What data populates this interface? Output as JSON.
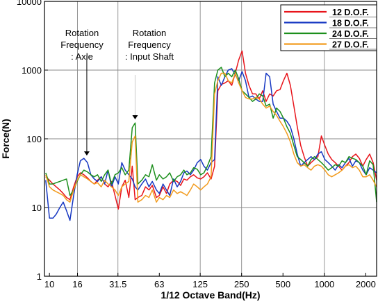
{
  "chart_data": {
    "type": "line",
    "title": "",
    "xlabel": "1/12 Octave Band(Hz)",
    "ylabel": "Force(N)",
    "x_scale": "log",
    "y_scale": "log",
    "xlim": [
      9.2,
      2400
    ],
    "ylim": [
      1,
      10000
    ],
    "x_ticks": [
      10,
      16,
      31.5,
      63,
      125,
      250,
      500,
      1000,
      2000
    ],
    "x_tick_labels": [
      "10",
      "16",
      "31.5",
      "63",
      "125",
      "250",
      "500",
      "1000",
      "2000"
    ],
    "y_ticks": [
      1,
      10,
      100,
      1000,
      10000
    ],
    "y_tick_labels": [
      "1",
      "10",
      "100",
      "1000",
      "10000"
    ],
    "x_grid_lines": [
      16,
      31.5,
      125,
      250,
      1000
    ],
    "y_grid_lines": [
      10,
      100,
      1000,
      10000
    ],
    "legend_position": "top-right",
    "series": [
      {
        "name": "12 D.O.F.",
        "color": "#e8141b",
        "x": [
          9.4,
          10,
          10.6,
          11.2,
          11.9,
          12.6,
          13.3,
          14.1,
          15,
          15.9,
          16.8,
          17.8,
          18.9,
          20,
          21.2,
          22.4,
          23.8,
          25.2,
          26.7,
          28.3,
          30,
          31.7,
          33.6,
          35.6,
          37.8,
          40,
          42,
          44,
          47,
          50,
          53,
          56,
          60,
          63,
          67,
          71,
          75,
          80,
          85,
          90,
          95,
          100,
          106,
          112,
          119,
          126,
          133,
          141,
          150,
          159,
          168,
          178,
          189,
          200,
          212,
          225,
          238,
          252,
          267,
          283,
          300,
          317,
          336,
          356,
          377,
          400,
          424,
          449,
          476,
          504,
          534,
          566,
          600,
          635,
          673,
          713,
          756,
          800,
          848,
          898,
          951,
          1008,
          1068,
          1131,
          1199,
          1270,
          1345,
          1425,
          1510,
          1600,
          1695,
          1796,
          1903,
          2016,
          2136,
          2263,
          2400
        ],
        "y": [
          28,
          25,
          22,
          20,
          18,
          16,
          14,
          13,
          20,
          28,
          32,
          30,
          27,
          24,
          22,
          25,
          28,
          22,
          20,
          24,
          15,
          9.5,
          20,
          25,
          14,
          40,
          13,
          14,
          15,
          20,
          18,
          21,
          14,
          15,
          20,
          16,
          22,
          25,
          24,
          21,
          26,
          25,
          28,
          30,
          27,
          26,
          28,
          32,
          26,
          40,
          500,
          620,
          650,
          700,
          600,
          900,
          1400,
          1900,
          900,
          600,
          450,
          450,
          380,
          500,
          350,
          450,
          420,
          500,
          520,
          700,
          900,
          600,
          300,
          150,
          80,
          55,
          40,
          45,
          50,
          55,
          110,
          80,
          60,
          50,
          45,
          40,
          35,
          40,
          45,
          55,
          60,
          52,
          40,
          50,
          60,
          45,
          25
        ]
      },
      {
        "name": "18 D.O.F.",
        "color": "#1637c2",
        "x": [
          9.4,
          10,
          10.6,
          11.2,
          11.9,
          12.6,
          13.3,
          14.1,
          15,
          15.9,
          16.8,
          17.8,
          18.9,
          20,
          21.2,
          22.4,
          23.8,
          25.2,
          26.7,
          28.3,
          30,
          31.7,
          33.6,
          35.6,
          37.8,
          40,
          42,
          44,
          47,
          50,
          53,
          56,
          60,
          63,
          67,
          71,
          75,
          80,
          85,
          90,
          95,
          100,
          106,
          112,
          119,
          126,
          133,
          141,
          150,
          159,
          168,
          178,
          189,
          200,
          212,
          225,
          238,
          252,
          267,
          283,
          300,
          317,
          336,
          356,
          377,
          400,
          424,
          449,
          476,
          504,
          534,
          566,
          600,
          635,
          673,
          713,
          756,
          800,
          848,
          898,
          951,
          1008,
          1068,
          1131,
          1199,
          1270,
          1345,
          1425,
          1510,
          1600,
          1695,
          1796,
          1903,
          2016,
          2136,
          2263,
          2400
        ],
        "y": [
          25,
          7,
          7,
          8,
          10,
          12,
          9,
          6.5,
          15,
          30,
          48,
          52,
          45,
          30,
          26,
          24,
          28,
          22,
          35,
          20,
          28,
          22,
          45,
          35,
          30,
          26,
          20,
          18,
          22,
          26,
          20,
          24,
          18,
          16,
          22,
          18,
          15,
          26,
          20,
          24,
          32,
          34,
          30,
          35,
          45,
          50,
          40,
          35,
          45,
          50,
          800,
          600,
          800,
          1000,
          1050,
          850,
          700,
          950,
          700,
          400,
          420,
          380,
          350,
          350,
          900,
          800,
          320,
          250,
          200,
          200,
          180,
          150,
          100,
          60,
          40,
          45,
          50,
          55,
          50,
          60,
          65,
          50,
          45,
          40,
          35,
          42,
          38,
          45,
          52,
          40,
          48,
          45,
          35,
          30,
          38,
          35,
          32
        ]
      },
      {
        "name": "24 D.O.F.",
        "color": "#1c8f1c",
        "x": [
          9.4,
          10,
          10.6,
          11.2,
          11.9,
          12.6,
          13.3,
          14.1,
          15,
          15.9,
          16.8,
          17.8,
          18.9,
          20,
          21.2,
          22.4,
          23.8,
          25.2,
          26.7,
          28.3,
          30,
          31.7,
          33.6,
          35.6,
          37.8,
          40,
          42,
          44,
          47,
          50,
          53,
          56,
          60,
          63,
          67,
          71,
          75,
          80,
          85,
          90,
          95,
          100,
          106,
          112,
          119,
          126,
          133,
          141,
          150,
          159,
          168,
          178,
          189,
          200,
          212,
          225,
          238,
          252,
          267,
          283,
          300,
          317,
          336,
          356,
          377,
          400,
          424,
          449,
          476,
          504,
          534,
          566,
          600,
          635,
          673,
          713,
          756,
          800,
          848,
          898,
          951,
          1008,
          1068,
          1131,
          1199,
          1270,
          1345,
          1425,
          1510,
          1600,
          1695,
          1796,
          1903,
          2016,
          2136,
          2263,
          2400
        ],
        "y": [
          32,
          22,
          22,
          23,
          24,
          25,
          26,
          15,
          18,
          24,
          30,
          35,
          33,
          30,
          28,
          30,
          24,
          30,
          35,
          22,
          30,
          32,
          38,
          30,
          35,
          145,
          170,
          22,
          25,
          30,
          28,
          42,
          25,
          30,
          26,
          28,
          32,
          24,
          28,
          30,
          35,
          30,
          32,
          38,
          36,
          30,
          32,
          40,
          55,
          650,
          1000,
          1100,
          800,
          900,
          800,
          1000,
          750,
          500,
          450,
          400,
          350,
          380,
          450,
          420,
          300,
          320,
          200,
          280,
          250,
          200,
          150,
          120,
          80,
          55,
          50,
          45,
          40,
          50,
          55,
          50,
          45,
          40,
          35,
          38,
          42,
          40,
          48,
          45,
          55,
          52,
          50,
          45,
          40,
          30,
          48,
          42,
          12
        ]
      },
      {
        "name": "27 D.O.F.",
        "color": "#f29b1d",
        "x": [
          9.4,
          10,
          10.6,
          11.2,
          11.9,
          12.6,
          13.3,
          14.1,
          15,
          15.9,
          16.8,
          17.8,
          18.9,
          20,
          21.2,
          22.4,
          23.8,
          25.2,
          26.7,
          28.3,
          30,
          31.7,
          33.6,
          35.6,
          37.8,
          40,
          42,
          44,
          47,
          50,
          53,
          56,
          60,
          63,
          67,
          71,
          75,
          80,
          85,
          90,
          95,
          100,
          106,
          112,
          119,
          126,
          133,
          141,
          150,
          159,
          168,
          178,
          189,
          200,
          212,
          225,
          238,
          252,
          267,
          283,
          300,
          317,
          336,
          356,
          377,
          400,
          424,
          449,
          476,
          504,
          534,
          566,
          600,
          635,
          673,
          713,
          756,
          800,
          848,
          898,
          951,
          1008,
          1068,
          1131,
          1199,
          1270,
          1345,
          1425,
          1510,
          1600,
          1695,
          1796,
          1903,
          2016,
          2136,
          2263,
          2400
        ],
        "y": [
          30,
          20,
          18,
          17,
          16,
          15,
          13,
          12,
          18,
          25,
          30,
          28,
          26,
          24,
          22,
          23,
          20,
          25,
          22,
          20,
          18,
          15,
          20,
          22,
          24,
          90,
          110,
          12,
          13,
          15,
          14,
          18,
          12,
          14,
          13,
          15,
          14,
          18,
          16,
          17,
          16,
          15,
          18,
          22,
          20,
          18,
          20,
          22,
          28,
          450,
          700,
          900,
          900,
          700,
          650,
          900,
          650,
          500,
          400,
          380,
          380,
          400,
          380,
          320,
          280,
          300,
          250,
          220,
          180,
          150,
          120,
          90,
          60,
          45,
          40,
          42,
          38,
          35,
          40,
          42,
          40,
          35,
          30,
          28,
          30,
          32,
          35,
          40,
          42,
          38,
          40,
          35,
          28,
          28,
          30,
          25,
          20
        ]
      }
    ],
    "annotations": [
      {
        "text_lines": [
          "Rotation",
          "Frequency",
          ": Axle"
        ],
        "x": 18.7,
        "y": 52
      },
      {
        "text_lines": [
          "Rotation",
          "Frequency",
          ": Input Shaft"
        ],
        "x": 42,
        "y": 175
      }
    ]
  }
}
